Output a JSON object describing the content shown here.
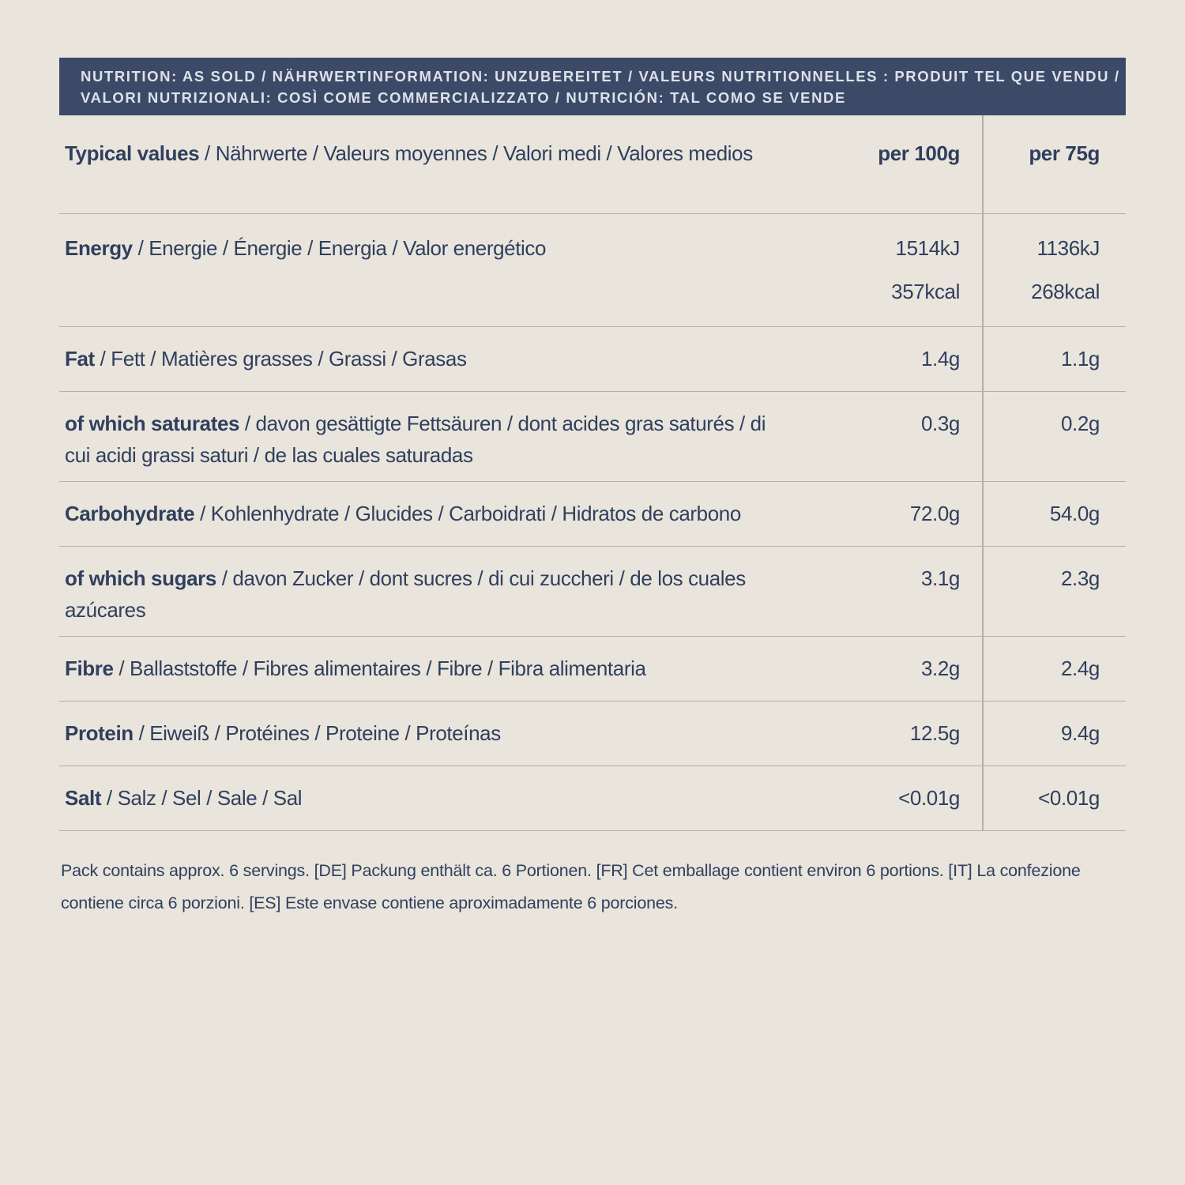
{
  "page": {
    "background_color": "#e9e5dc",
    "banner_color": "#3c4a68",
    "banner_text_color": "#dde2ea",
    "text_color": "#2f3f5d",
    "rule_color": "#b5afa3"
  },
  "banner": {
    "line1": "NUTRITION: AS SOLD / NÄHRWERTINFORMATION: UNZUBEREITET / VALEURS NUTRITIONNELLES : PRODUIT TEL QUE VENDU /",
    "line2": "VALORI NUTRIZIONALI: COSÌ COME COMMERCIALIZZATO / NUTRICIÓN: TAL COMO SE VENDE"
  },
  "table": {
    "header": {
      "label_bold": "Typical values",
      "label_rest": " / Nährwerte / Valeurs moyennes / Valori medi / Valores medios",
      "col_per100g": "per 100g",
      "col_per75g": "per 75g"
    },
    "rows": [
      {
        "bold": "Energy",
        "rest": " / Energie / Énergie / Energia / Valor energético",
        "per100g": "1514kJ\n357kcal",
        "per75g": "1136kJ\n268kcal"
      },
      {
        "bold": "Fat",
        "rest": " / Fett / Matières grasses / Grassi / Grasas",
        "per100g": "1.4g",
        "per75g": "1.1g"
      },
      {
        "bold": "of which saturates",
        "rest": " / davon gesättigte Fettsäuren / dont acides gras saturés / di cui acidi grassi saturi / de las cuales saturadas",
        "per100g": "0.3g",
        "per75g": "0.2g"
      },
      {
        "bold": "Carbohydrate",
        "rest": " / Kohlenhydrate / Glucides / Carboidrati / Hidratos de carbono",
        "per100g": "72.0g",
        "per75g": "54.0g"
      },
      {
        "bold": "of which sugars",
        "rest": " / davon Zucker / dont sucres / di cui zuccheri / de los cuales azúcares",
        "per100g": "3.1g",
        "per75g": "2.3g"
      },
      {
        "bold": "Fibre",
        "rest": " / Ballaststoffe / Fibres alimentaires / Fibre / Fibra alimentaria",
        "per100g": "3.2g",
        "per75g": "2.4g"
      },
      {
        "bold": "Protein",
        "rest": " / Eiweiß / Protéines / Proteine / Proteínas",
        "per100g": "12.5g",
        "per75g": "9.4g"
      },
      {
        "bold": "Salt",
        "rest": " / Salz / Sel / Sale / Sal",
        "per100g": "<0.01g",
        "per75g": "<0.01g"
      }
    ]
  },
  "footer": {
    "text": "Pack contains approx. 6 servings. [DE] Packung enthält ca. 6 Portionen. [FR] Cet emballage contient environ 6 portions. [IT] La confezione contiene circa 6 porzioni. [ES] Este envase contiene aproximadamente 6 porciones."
  }
}
